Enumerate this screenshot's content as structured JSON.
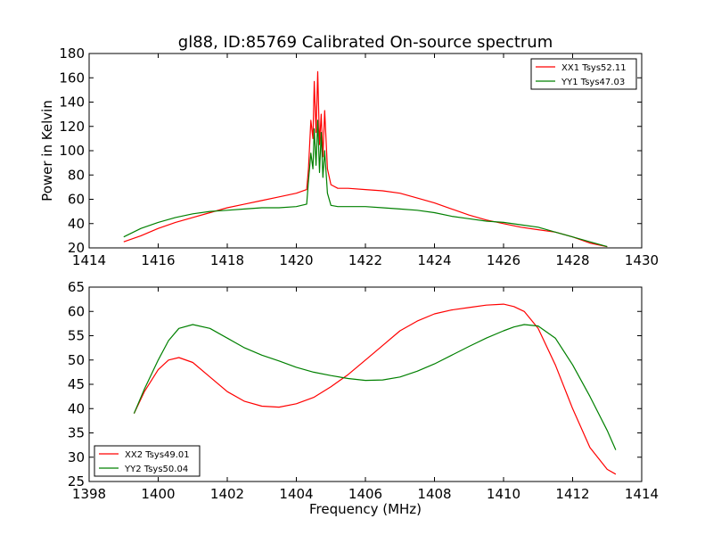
{
  "title": "gl88, ID:85769 Calibrated On-source spectrum",
  "colors": {
    "red": "#ff0000",
    "green": "#008000"
  },
  "chart_data": [
    {
      "type": "line",
      "ylabel": "Power in Kelvin",
      "xlabel": "",
      "xlim": [
        1414,
        1430
      ],
      "ylim": [
        20,
        180
      ],
      "xticks": [
        1414,
        1416,
        1418,
        1420,
        1422,
        1424,
        1426,
        1428,
        1430
      ],
      "yticks": [
        20,
        40,
        60,
        80,
        100,
        120,
        140,
        160,
        180
      ],
      "legend_position": "top-right",
      "series": [
        {
          "name": "XX1 Tsys52.11",
          "color": "#ff0000",
          "x": [
            1415.0,
            1415.5,
            1416.0,
            1416.5,
            1417.0,
            1417.5,
            1418.0,
            1418.5,
            1419.0,
            1419.5,
            1420.0,
            1420.3,
            1420.35,
            1420.42,
            1420.48,
            1420.52,
            1420.57,
            1420.62,
            1420.67,
            1420.72,
            1420.77,
            1420.82,
            1420.9,
            1421.0,
            1421.2,
            1421.5,
            1422.0,
            1422.5,
            1423.0,
            1423.5,
            1424.0,
            1424.5,
            1425.0,
            1425.5,
            1426.0,
            1426.5,
            1427.0,
            1427.5,
            1428.0,
            1428.5,
            1429.0
          ],
          "values": [
            25,
            30,
            36,
            41,
            45,
            49,
            53,
            56,
            59,
            62,
            65,
            68,
            85,
            125,
            110,
            157,
            115,
            165,
            105,
            130,
            95,
            133,
            85,
            72,
            69,
            69,
            68,
            67,
            65,
            61,
            57,
            52,
            47,
            43,
            40,
            37,
            35,
            33,
            29,
            24,
            21
          ]
        },
        {
          "name": "YY1 Tsys47.03",
          "color": "#008000",
          "x": [
            1415.0,
            1415.5,
            1416.0,
            1416.5,
            1417.0,
            1417.5,
            1418.0,
            1418.5,
            1419.0,
            1419.5,
            1420.0,
            1420.3,
            1420.35,
            1420.42,
            1420.48,
            1420.52,
            1420.57,
            1420.62,
            1420.67,
            1420.72,
            1420.77,
            1420.82,
            1420.9,
            1421.0,
            1421.2,
            1421.5,
            1422.0,
            1422.5,
            1423.0,
            1423.5,
            1424.0,
            1424.5,
            1425.0,
            1425.5,
            1426.0,
            1426.5,
            1427.0,
            1427.5,
            1428.0,
            1428.5,
            1429.0
          ],
          "values": [
            29,
            36,
            41,
            45,
            48,
            50,
            51,
            52,
            53,
            53,
            54,
            56,
            75,
            98,
            85,
            118,
            88,
            125,
            82,
            115,
            78,
            100,
            65,
            55,
            54,
            54,
            54,
            53,
            52,
            51,
            49,
            46,
            44,
            42,
            41,
            39,
            37,
            33,
            29,
            25,
            21
          ]
        }
      ]
    },
    {
      "type": "line",
      "ylabel": "",
      "xlabel": "Frequency (MHz)",
      "xlim": [
        1398,
        1414
      ],
      "ylim": [
        25,
        65
      ],
      "xticks": [
        1398,
        1400,
        1402,
        1404,
        1406,
        1408,
        1410,
        1412,
        1414
      ],
      "yticks": [
        25,
        30,
        35,
        40,
        45,
        50,
        55,
        60,
        65
      ],
      "legend_position": "bottom-left",
      "series": [
        {
          "name": "XX2 Tsys49.01",
          "color": "#ff0000",
          "x": [
            1399.3,
            1399.6,
            1400.0,
            1400.3,
            1400.6,
            1401.0,
            1401.5,
            1402.0,
            1402.5,
            1403.0,
            1403.5,
            1404.0,
            1404.5,
            1405.0,
            1405.5,
            1406.0,
            1406.5,
            1407.0,
            1407.5,
            1408.0,
            1408.5,
            1409.0,
            1409.5,
            1410.0,
            1410.3,
            1410.6,
            1411.0,
            1411.5,
            1412.0,
            1412.5,
            1413.0,
            1413.25
          ],
          "values": [
            39,
            43.5,
            48,
            50,
            50.5,
            49.5,
            46.5,
            43.5,
            41.5,
            40.5,
            40.3,
            41,
            42.3,
            44.5,
            47,
            50,
            53,
            56,
            58,
            59.5,
            60.3,
            60.8,
            61.3,
            61.5,
            61,
            60,
            56.5,
            49,
            40,
            32,
            27.5,
            26.5
          ]
        },
        {
          "name": "YY2 Tsys50.04",
          "color": "#008000",
          "x": [
            1399.3,
            1399.6,
            1400.0,
            1400.3,
            1400.6,
            1401.0,
            1401.5,
            1402.0,
            1402.5,
            1403.0,
            1403.5,
            1404.0,
            1404.5,
            1405.0,
            1405.5,
            1406.0,
            1406.5,
            1407.0,
            1407.5,
            1408.0,
            1408.5,
            1409.0,
            1409.5,
            1410.0,
            1410.3,
            1410.6,
            1411.0,
            1411.5,
            1412.0,
            1412.5,
            1413.0,
            1413.25
          ],
          "values": [
            39,
            44,
            50,
            54,
            56.5,
            57.3,
            56.5,
            54.5,
            52.5,
            51,
            49.8,
            48.5,
            47.5,
            46.8,
            46.2,
            45.8,
            45.9,
            46.5,
            47.7,
            49.2,
            51,
            52.8,
            54.5,
            56,
            56.8,
            57.3,
            57,
            54.5,
            49,
            42.5,
            35.5,
            31.5
          ]
        }
      ]
    }
  ]
}
